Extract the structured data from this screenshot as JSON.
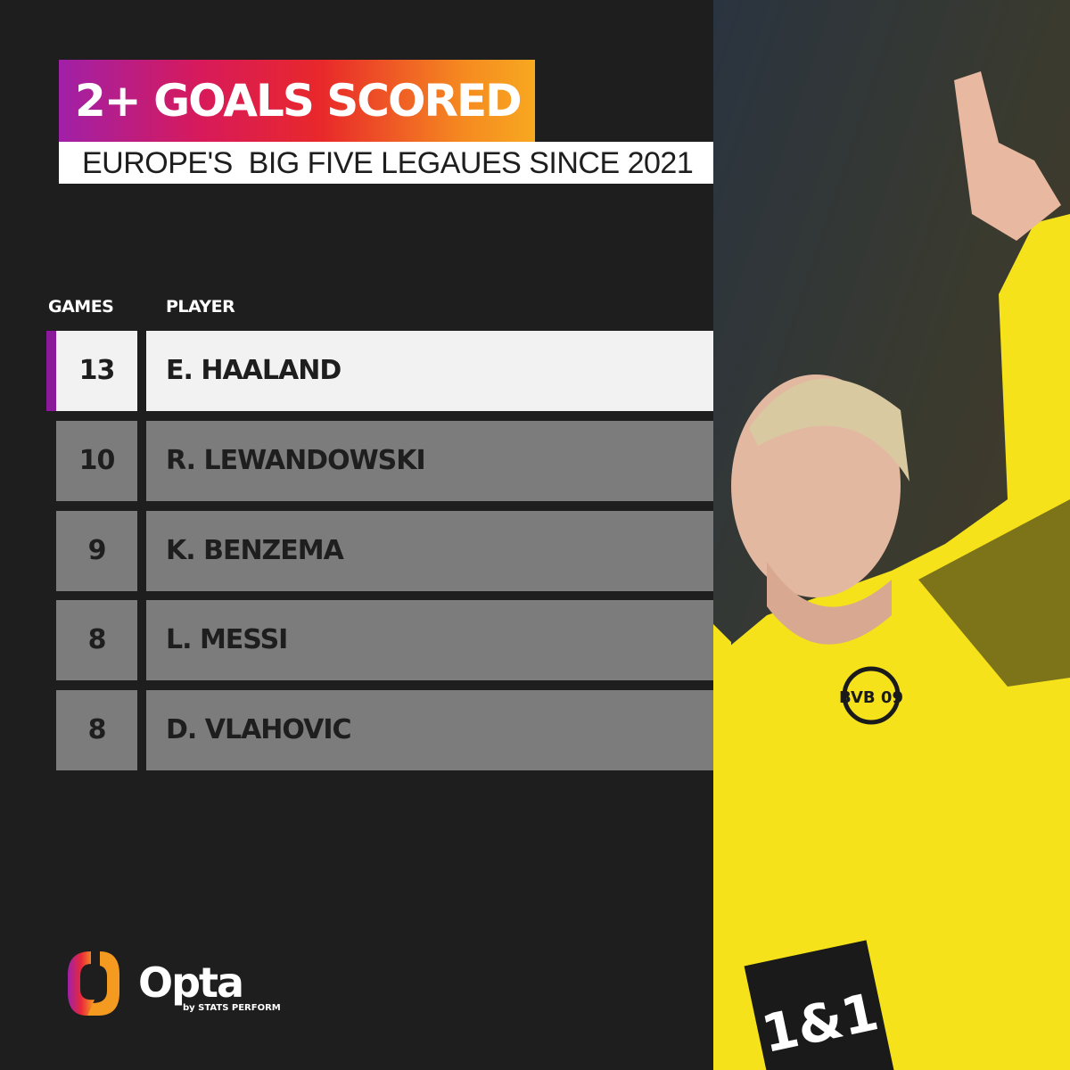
{
  "header": {
    "title": "2+ GOALS SCORED",
    "subtitle": "EUROPE'S  BIG FIVE LEGAUES SINCE 2021"
  },
  "table": {
    "columns": [
      "GAMES",
      "PLAYER"
    ],
    "rows": [
      {
        "games": "13",
        "player": "E. HAALAND"
      },
      {
        "games": "10",
        "player": "R. LEWANDOWSKI"
      },
      {
        "games": "9",
        "player": "K. BENZEMA"
      },
      {
        "games": "8",
        "player": "L. MESSI"
      },
      {
        "games": "8",
        "player": "D. VLAHOVIC"
      }
    ]
  },
  "photo": {
    "sponsor": "1&1",
    "crest": "BVB 09"
  },
  "brand": {
    "name": "Opta",
    "tagline": "by STATS PERFORM"
  },
  "colors": {
    "background": "#1e1e1e",
    "row": "#7c7c7c",
    "highlight": "#f2f2f2",
    "accent": "#8a1a9a",
    "jersey": "#f5e21a"
  }
}
